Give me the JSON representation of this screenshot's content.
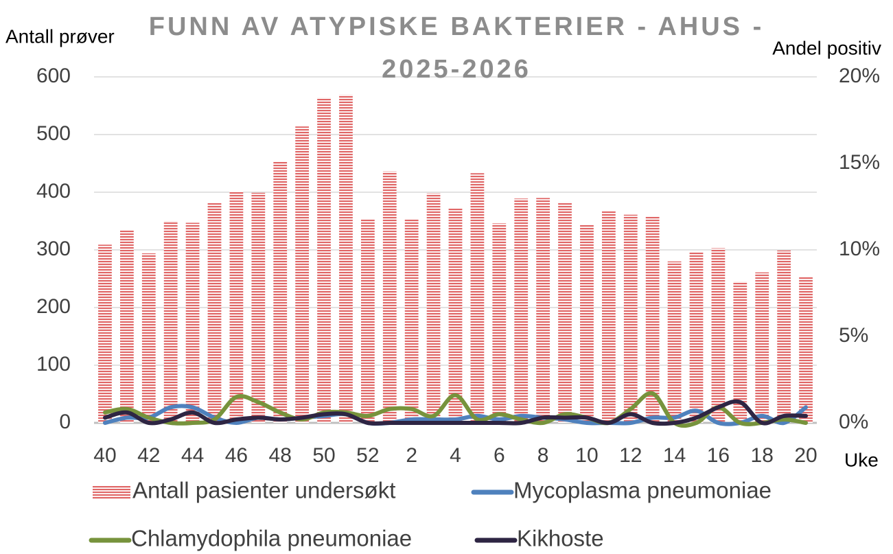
{
  "chart_data": {
    "type": "bar",
    "title": "FUNN AV ATYPISKE BAKTERIER - AHUS - 2025-2026",
    "y_label": "Antall prøver",
    "y2_label": "Andel positiv",
    "x_label": "Uke",
    "categories": [
      40,
      null,
      42,
      null,
      44,
      null,
      46,
      null,
      48,
      null,
      50,
      null,
      52,
      null,
      2,
      null,
      4,
      null,
      6,
      null,
      8,
      null,
      10,
      null,
      12,
      null,
      14,
      null,
      16,
      null,
      18,
      null,
      20
    ],
    "ylim": [
      0,
      600
    ],
    "yticks": [
      0,
      100,
      200,
      300,
      400,
      500,
      600
    ],
    "y2lim": [
      0,
      20
    ],
    "y2ticks": [
      {
        "value": 0,
        "label": "0%"
      },
      {
        "value": 5,
        "label": "5%"
      },
      {
        "value": 10,
        "label": "10%"
      },
      {
        "value": 15,
        "label": "15%"
      },
      {
        "value": 20,
        "label": "20%"
      }
    ],
    "grid": true,
    "series": [
      {
        "name": "Antall pasienter undersøkt",
        "type": "bar",
        "color": "#e06666",
        "axis": "y",
        "values": [
          309,
          334,
          294,
          350,
          347,
          381,
          401,
          399,
          454,
          514,
          564,
          569,
          353,
          436,
          353,
          398,
          372,
          433,
          346,
          389,
          390,
          383,
          343,
          367,
          361,
          358,
          280,
          296,
          303,
          245,
          261,
          299,
          253
        ]
      },
      {
        "name": "Mycoplasma pneumoniae",
        "type": "line",
        "color": "#4f81bd",
        "axis": "y2",
        "values": [
          0,
          0.3,
          0.3,
          0.9,
          0.9,
          0.3,
          0,
          0.3,
          0.2,
          0.3,
          0.4,
          0.5,
          0,
          0,
          0.2,
          0.2,
          0.2,
          0.4,
          0.2,
          0.4,
          0.3,
          0.2,
          0,
          0,
          0,
          0.3,
          0.3,
          0.7,
          0,
          0,
          0.4,
          0,
          0.9
        ]
      },
      {
        "name": "Chlamydophila pneumoniae",
        "type": "line",
        "color": "#77933c",
        "axis": "y2",
        "values": [
          0.6,
          0.8,
          0.3,
          0,
          0,
          0.2,
          1.5,
          1.2,
          0.6,
          0.2,
          0.6,
          0.6,
          0.4,
          0.8,
          0.8,
          0.4,
          1.6,
          0.2,
          0.5,
          0.2,
          0,
          0.5,
          0.3,
          0,
          0.8,
          1.7,
          0,
          0,
          0.9,
          0,
          0,
          0.2,
          0
        ]
      },
      {
        "name": "Kikhoste",
        "type": "line",
        "color": "#2e2543",
        "axis": "y2",
        "values": [
          0.3,
          0.6,
          0,
          0.2,
          0.6,
          0,
          0.2,
          0.3,
          0.2,
          0.3,
          0.5,
          0.5,
          0,
          0,
          0,
          0,
          0,
          0,
          0,
          0,
          0.3,
          0.3,
          0.3,
          0,
          0.5,
          0,
          0,
          0.3,
          0.9,
          1.2,
          0,
          0.4,
          0.4
        ]
      }
    ]
  }
}
